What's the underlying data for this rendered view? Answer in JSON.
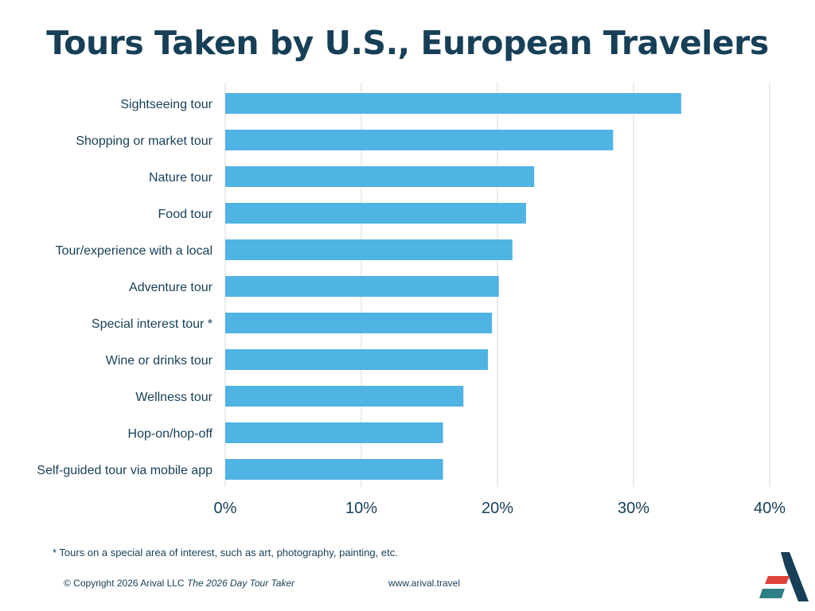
{
  "chart_data": {
    "type": "bar",
    "orientation": "horizontal",
    "title": "Tours Taken by U.S., European Travelers",
    "categories": [
      "Sightseeing tour",
      "Shopping or market tour",
      "Nature tour",
      "Food tour",
      "Tour/experience with a local",
      "Adventure tour",
      "Special interest tour *",
      "Wine or drinks tour",
      "Wellness tour",
      "Hop-on/hop-off",
      "Self-guided tour via mobile app"
    ],
    "values": [
      33.5,
      28.5,
      22.7,
      22.1,
      21.1,
      20.1,
      19.6,
      19.3,
      17.5,
      16.0,
      16.0
    ],
    "value_unit": "%",
    "xlim": [
      0,
      40
    ],
    "x_ticks": [
      "0%",
      "10%",
      "20%",
      "30%",
      "40%"
    ],
    "xlabel": "",
    "ylabel": "",
    "grid": "vertical",
    "bar_color": "#4fb3e3"
  },
  "footnote": "* Tours on a special area of interest, such as art, photography, painting, etc.",
  "footer": {
    "copyright": "© Copyright 2026 Arival LLC",
    "publication": "The 2026 Day Tour Taker",
    "website": "www.arival.travel"
  },
  "colors": {
    "title": "#173f57",
    "bar": "#4fb3e3",
    "grid": "#d9d9d9",
    "logo_dark": "#173f57",
    "logo_red": "#e0443c",
    "logo_teal": "#2e7f86"
  }
}
